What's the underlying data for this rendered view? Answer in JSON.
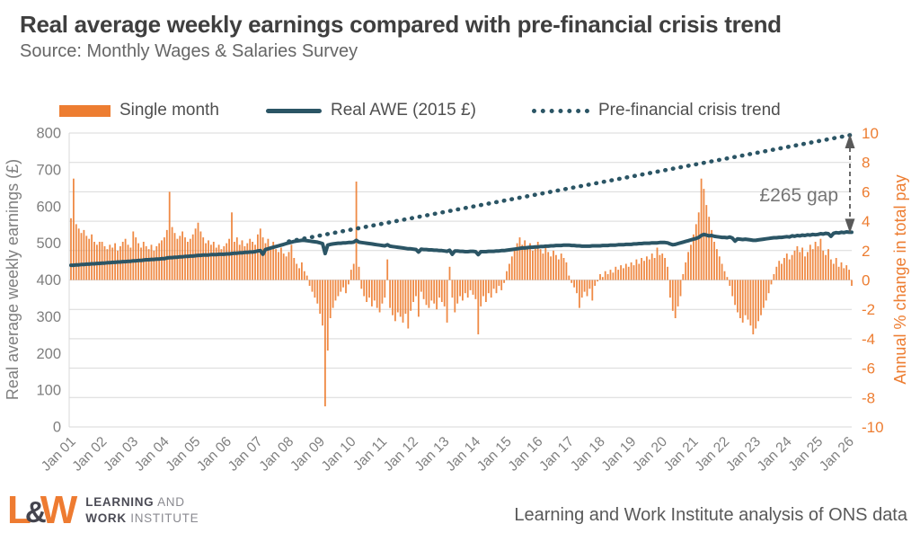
{
  "header": {
    "title": "Real average weekly earnings compared with pre-financial crisis trend",
    "subtitle": "Source: Monthly Wages & Salaries Survey"
  },
  "legend": {
    "items": [
      {
        "label": "Single month",
        "swatch": "orange-bar"
      },
      {
        "label": "Real AWE (2015 £)",
        "swatch": "teal-line"
      },
      {
        "label": "Pre-financial crisis trend",
        "swatch": "teal-dotted-line"
      }
    ]
  },
  "chart_data": {
    "type": "combo",
    "frequency": "monthly",
    "start": "2001-01",
    "end": "2026-02",
    "legend_position": "top",
    "grid": "horizontal",
    "x_tick_labels": [
      "Jan 01",
      "Jan 02",
      "Jan 03",
      "Jan 04",
      "Jan 05",
      "Jan 06",
      "Jan 07",
      "Jan 08",
      "Jan 09",
      "Jan 10",
      "Jan 11",
      "Jan 12",
      "Jan 13",
      "Jan 14",
      "Jan 15",
      "Jan 16",
      "Jan 17",
      "Jan 18",
      "Jan 19",
      "Jan 20",
      "Jan 21",
      "Jan 22",
      "Jan 23",
      "Jan 24",
      "Jan 25",
      "Jan 26"
    ],
    "left_axis": {
      "label": "Real average weekly earnings (£)",
      "range": [
        0,
        800
      ],
      "ticks": [
        0,
        100,
        200,
        300,
        400,
        500,
        600,
        700,
        800
      ]
    },
    "right_axis": {
      "label": "Annual % change in total pay",
      "range": [
        -10,
        10
      ],
      "ticks": [
        -10,
        -8,
        -6,
        -4,
        -2,
        0,
        2,
        4,
        6,
        8,
        10
      ]
    },
    "annotation": {
      "label": "£265 gap",
      "from_value": 795,
      "to_value": 530
    },
    "series": [
      {
        "name": "Single month",
        "type": "bar",
        "axis": "right",
        "color": "#ED7D31",
        "values": [
          4.2,
          6.9,
          3.8,
          3.5,
          3.2,
          3.4,
          3.0,
          2.8,
          3.1,
          2.6,
          2.4,
          2.6,
          2.6,
          2.3,
          2.1,
          2.4,
          2.2,
          2.5,
          2.0,
          2.3,
          2.6,
          2.8,
          2.4,
          2.2,
          3.3,
          2.9,
          2.5,
          2.2,
          2.6,
          2.3,
          2.1,
          2.4,
          2.0,
          2.3,
          2.5,
          2.7,
          2.9,
          3.4,
          6.0,
          3.6,
          3.2,
          2.8,
          3.0,
          3.3,
          2.9,
          2.6,
          2.8,
          3.1,
          3.5,
          3.9,
          3.3,
          2.9,
          2.5,
          2.7,
          2.4,
          2.6,
          2.2,
          2.4,
          2.1,
          2.3,
          2.5,
          2.8,
          4.6,
          2.6,
          2.9,
          2.4,
          2.7,
          2.3,
          2.5,
          2.8,
          2.6,
          2.4,
          3.1,
          3.5,
          2.9,
          2.5,
          2.8,
          2.3,
          2.6,
          2.1,
          1.9,
          2.2,
          1.8,
          1.6,
          1.9,
          2.4,
          1.5,
          1.1,
          0.8,
          1.2,
          0.6,
          0.3,
          -0.4,
          -0.8,
          -1.2,
          -1.6,
          -2.3,
          -3.1,
          -8.6,
          -4.8,
          -2.6,
          -1.9,
          -1.4,
          -1.1,
          -0.8,
          -0.5,
          -0.9,
          -0.3,
          0.7,
          1.1,
          6.7,
          0.9,
          -0.6,
          -1.1,
          -1.5,
          -1.2,
          -1.8,
          -1.4,
          -1.9,
          -2.2,
          -1.6,
          -1.2,
          1.4,
          -1.9,
          -2.4,
          -2.8,
          -2.2,
          -2.5,
          -2.9,
          -2.3,
          -3.3,
          -2.1,
          -1.5,
          -1.1,
          -2.5,
          -0.8,
          -1.3,
          -1.7,
          -1.9,
          -1.4,
          -1.6,
          -2.0,
          -1.2,
          -1.5,
          -1.8,
          -2.9,
          0.9,
          -1.2,
          -2.2,
          -1.6,
          -1.1,
          -1.4,
          -0.9,
          -1.2,
          -0.7,
          -1.0,
          -1.3,
          -3.7,
          -1.8,
          -1.1,
          -1.5,
          -0.9,
          -1.2,
          -0.6,
          -0.9,
          -0.4,
          -0.7,
          -0.2,
          0.6,
          1.1,
          1.6,
          2.1,
          2.5,
          2.9,
          2.4,
          2.7,
          2.2,
          2.5,
          2.0,
          2.3,
          2.6,
          2.1,
          1.8,
          2.2,
          1.9,
          1.6,
          2.0,
          1.7,
          1.4,
          1.8,
          1.5,
          1.2,
          0.3,
          -0.2,
          -0.5,
          -0.9,
          -1.9,
          -1.2,
          -0.8,
          -1.1,
          -0.6,
          -1.4,
          -0.4,
          -0.1,
          0.4,
          0.2,
          0.6,
          0.4,
          0.7,
          0.5,
          0.9,
          0.7,
          1.0,
          0.8,
          1.1,
          0.9,
          1.2,
          1.0,
          1.4,
          1.1,
          1.5,
          1.3,
          1.6,
          1.4,
          1.8,
          1.5,
          2.2,
          1.7,
          1.8,
          1.5,
          0.9,
          -1.2,
          -2.1,
          -2.6,
          -1.8,
          -1.1,
          0.4,
          1.2,
          1.9,
          2.4,
          3.1,
          3.8,
          4.6,
          6.9,
          6.2,
          5.1,
          4.3,
          3.4,
          2.6,
          2.1,
          1.6,
          1.1,
          0.6,
          0.2,
          -0.4,
          -1.1,
          -1.7,
          -2.2,
          -2.6,
          -2.9,
          -2.4,
          -2.7,
          -3.1,
          -3.7,
          -3.3,
          -2.8,
          -2.4,
          -1.9,
          -1.4,
          -0.9,
          -0.3,
          0.4,
          0.9,
          1.3,
          1.1,
          1.5,
          1.8,
          1.4,
          1.7,
          2.0,
          2.3,
          1.9,
          2.2,
          1.6,
          1.9,
          2.4,
          2.1,
          2.6,
          2.3,
          2.8,
          2.0,
          1.7,
          2.1,
          1.4,
          1.1,
          1.5,
          0.9,
          1.2,
          0.8,
          1.0,
          0.7,
          -0.4
        ]
      },
      {
        "name": "Real AWE (2015 £)",
        "type": "line",
        "axis": "left",
        "color": "#2B5565",
        "values": [
          440,
          440,
          441,
          441,
          442,
          442,
          443,
          443,
          444,
          444,
          445,
          445,
          446,
          446,
          447,
          447,
          448,
          448,
          449,
          449,
          450,
          450,
          451,
          451,
          452,
          452,
          453,
          453,
          454,
          455,
          455,
          456,
          456,
          457,
          457,
          458,
          458,
          460,
          461,
          461,
          462,
          462,
          463,
          463,
          464,
          464,
          465,
          465,
          466,
          467,
          467,
          468,
          468,
          468,
          469,
          469,
          469,
          470,
          470,
          470,
          471,
          471,
          472,
          473,
          473,
          474,
          474,
          475,
          475,
          476,
          476,
          477,
          479,
          480,
          470,
          483,
          485,
          487,
          489,
          491,
          493,
          495,
          497,
          499,
          501,
          503,
          505,
          506,
          507,
          508,
          508,
          507,
          506,
          505,
          504,
          503,
          501,
          499,
          472,
          495,
          497,
          498,
          499,
          500,
          500,
          501,
          501,
          502,
          502,
          503,
          508,
          503,
          502,
          501,
          500,
          499,
          498,
          497,
          496,
          495,
          494,
          493,
          496,
          492,
          491,
          490,
          489,
          488,
          487,
          486,
          485,
          485,
          484,
          483,
          476,
          484,
          483,
          483,
          482,
          482,
          481,
          481,
          480,
          480,
          479,
          478,
          481,
          470,
          479,
          479,
          478,
          478,
          477,
          477,
          478,
          478,
          477,
          469,
          477,
          477,
          477,
          478,
          478,
          478,
          479,
          479,
          480,
          480,
          481,
          482,
          483,
          484,
          485,
          486,
          487,
          487,
          488,
          489,
          489,
          490,
          490,
          491,
          491,
          492,
          492,
          493,
          493,
          494,
          494,
          494,
          495,
          495,
          495,
          494,
          494,
          493,
          493,
          492,
          492,
          492,
          492,
          493,
          493,
          493,
          493,
          494,
          494,
          494,
          495,
          495,
          495,
          496,
          496,
          496,
          497,
          497,
          497,
          498,
          498,
          499,
          499,
          500,
          500,
          500,
          501,
          501,
          501,
          502,
          502,
          502,
          501,
          498,
          496,
          497,
          499,
          501,
          503,
          505,
          507,
          509,
          511,
          513,
          516,
          521,
          524,
          522,
          520,
          521,
          519,
          518,
          517,
          516,
          516,
          515,
          517,
          514,
          506,
          512,
          511,
          510,
          511,
          510,
          509,
          508,
          508,
          509,
          510,
          511,
          512,
          513,
          514,
          515,
          515,
          516,
          516,
          517,
          518,
          517,
          520,
          519,
          521,
          520,
          522,
          521,
          523,
          522,
          524,
          523,
          524,
          526,
          525,
          527,
          526,
          519,
          527,
          529,
          528,
          530,
          529,
          531,
          530,
          530
        ]
      },
      {
        "name": "Pre-financial crisis trend",
        "type": "dotted-line",
        "axis": "left",
        "color": "#2B5565",
        "start_index": 84,
        "start_value": 505,
        "end_index": 301,
        "end_value": 795
      }
    ]
  },
  "footer": {
    "logo": {
      "l": "L",
      "amp": "&",
      "w": "W",
      "line1_bold": "LEARNING",
      "line1_rest": " AND",
      "line2_bold": "WORK",
      "line2_rest": " INSTITUTE"
    },
    "credit": "Learning and Work Institute analysis of ONS data"
  },
  "colors": {
    "orange": "#ED7D31",
    "teal": "#2B5565",
    "grid": "#D9D9D9",
    "axis_text": "#7F7F7F",
    "title_text": "#3F3F3F",
    "annotation_gray": "#595959"
  }
}
